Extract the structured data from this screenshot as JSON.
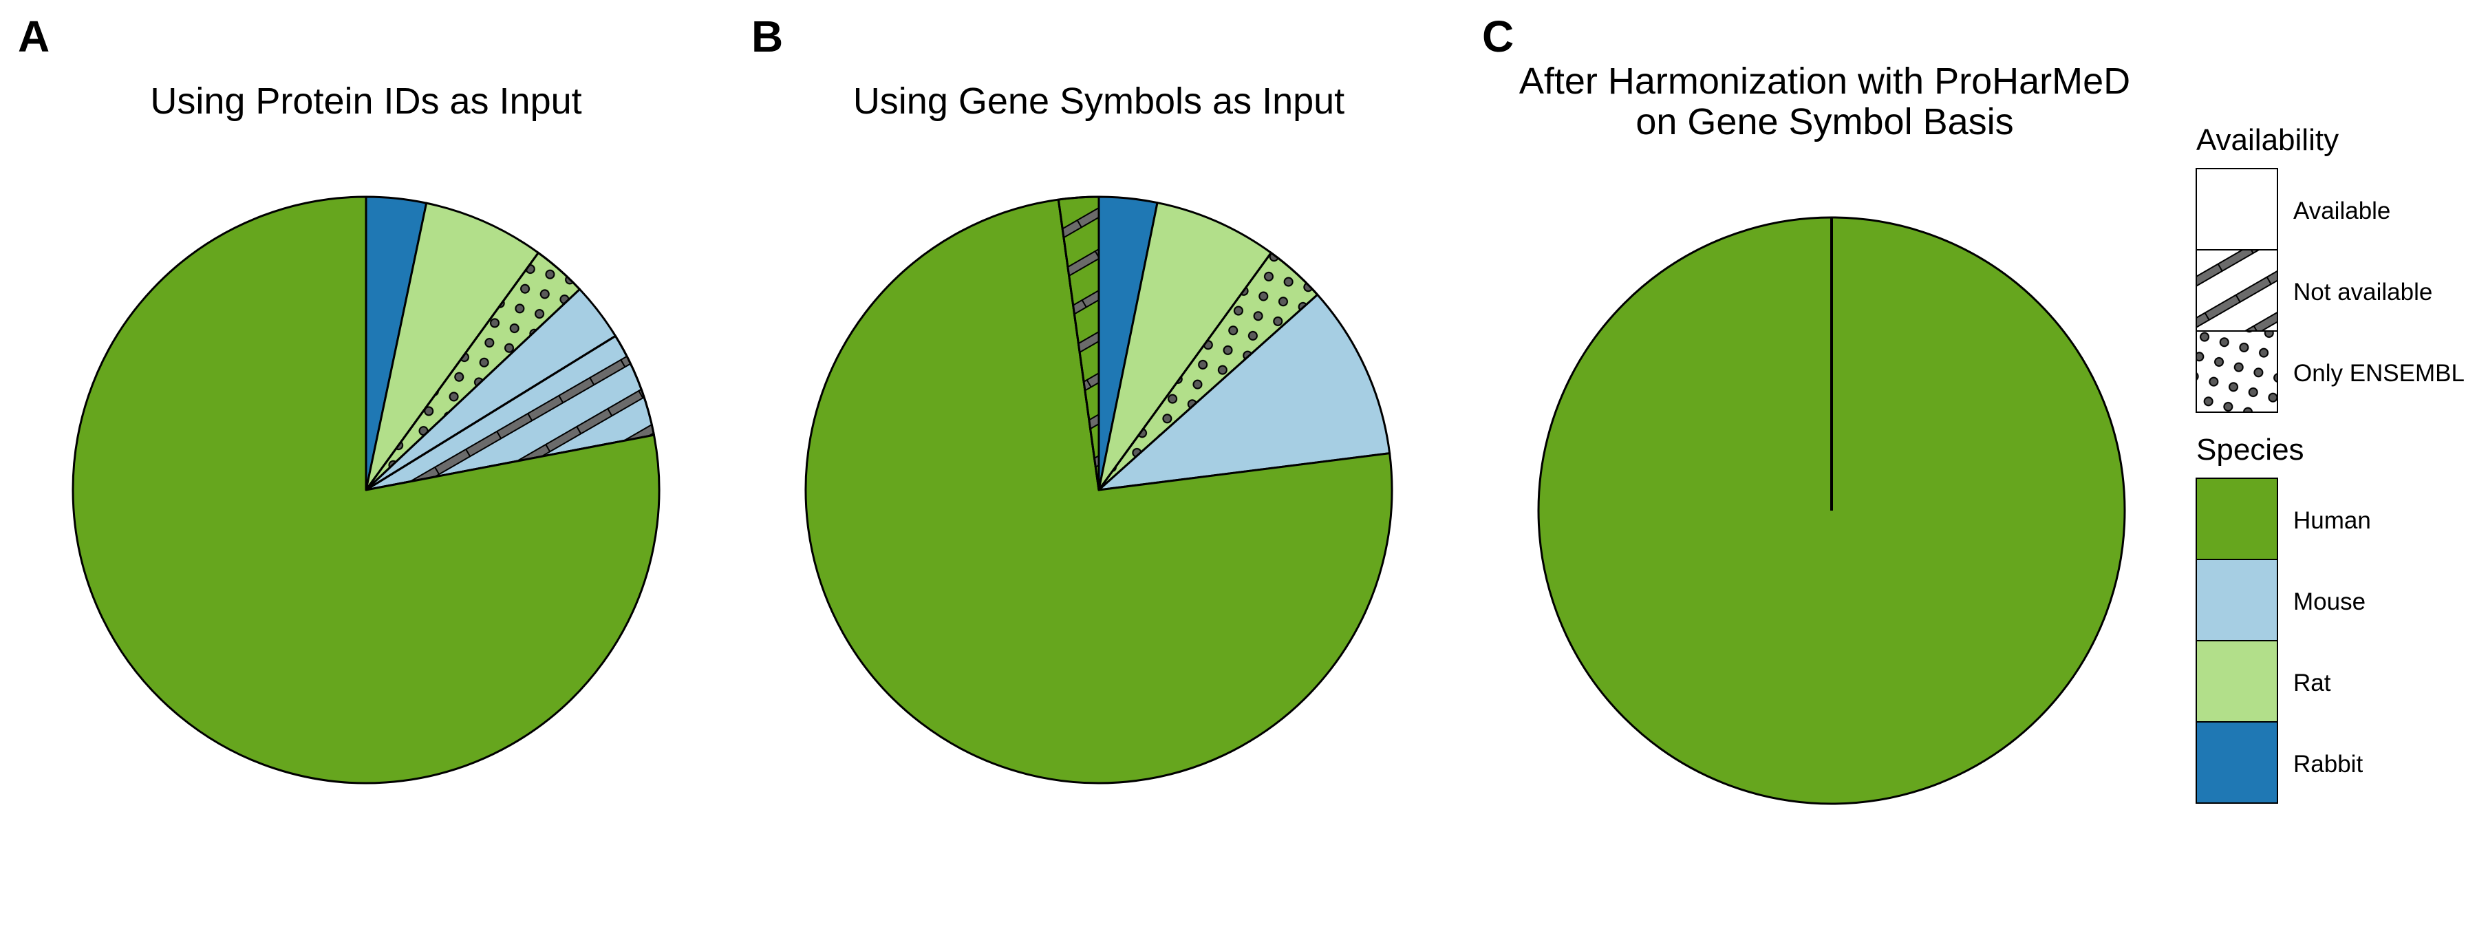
{
  "chart_data": [
    {
      "panel": "A",
      "type": "pie",
      "title": "Using Protein IDs as Input",
      "start": "12 o'clock, clockwise",
      "slices": [
        {
          "species": "Rabbit",
          "availability": "Available",
          "value": 3.3
        },
        {
          "species": "Rat",
          "availability": "Available",
          "value": 6.7
        },
        {
          "species": "Rat",
          "availability": "Only ENSEMBL",
          "value": 3.0
        },
        {
          "species": "Mouse",
          "availability": "Available",
          "value": 3.2
        },
        {
          "species": "Mouse",
          "availability": "Not available",
          "value": 5.8
        },
        {
          "species": "Human",
          "availability": "Available",
          "value": 78.0
        }
      ]
    },
    {
      "panel": "B",
      "type": "pie",
      "title": "Using Gene Symbols as Input",
      "start": "12 o'clock, clockwise",
      "slices": [
        {
          "species": "Rabbit",
          "availability": "Available",
          "value": 3.2
        },
        {
          "species": "Rat",
          "availability": "Available",
          "value": 6.8
        },
        {
          "species": "Rat",
          "availability": "Only ENSEMBL",
          "value": 3.4
        },
        {
          "species": "Mouse",
          "availability": "Available",
          "value": 9.6
        },
        {
          "species": "Human",
          "availability": "Available",
          "value": 74.8
        },
        {
          "species": "Human",
          "availability": "Not available",
          "value": 2.2
        }
      ]
    },
    {
      "panel": "C",
      "type": "pie",
      "title_lines": [
        "After Harmonization with ProHarMeD",
        "on Gene Symbol Basis"
      ],
      "start": "12 o'clock, clockwise",
      "slices": [
        {
          "species": "Human",
          "availability": "Available",
          "value": 100.0
        }
      ]
    }
  ],
  "legend": {
    "availability": {
      "title": "Availability",
      "items": [
        {
          "label": "Available",
          "pattern": "none"
        },
        {
          "label": "Not available",
          "pattern": "stripe"
        },
        {
          "label": "Only ENSEMBL",
          "pattern": "dots"
        }
      ]
    },
    "species": {
      "title": "Species",
      "items": [
        {
          "label": "Human",
          "color": "#66a61e"
        },
        {
          "label": "Mouse",
          "color": "#a6cee3"
        },
        {
          "label": "Rat",
          "color": "#b2df8a"
        },
        {
          "label": "Rabbit",
          "color": "#1f78b4"
        }
      ]
    }
  },
  "colors": {
    "Human": "#66a61e",
    "Mouse": "#a6cee3",
    "Rat": "#b2df8a",
    "Rabbit": "#1f78b4",
    "stripe": "#6b6b6b",
    "dot": "#5a5a5a",
    "outline": "#000000"
  }
}
